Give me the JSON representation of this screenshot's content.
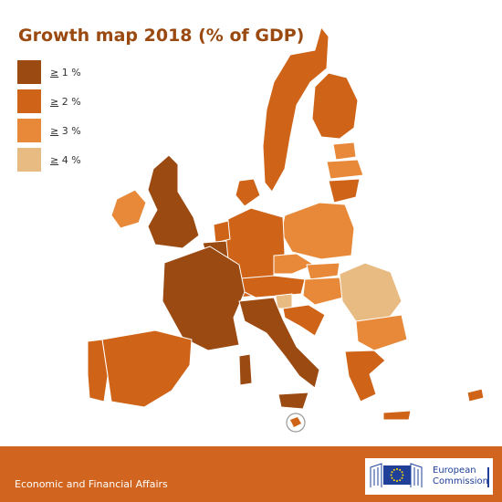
{
  "title": "Growth map 2018 (% of GDP)",
  "legend": [
    {
      "symbol": "≥",
      "value": "1 %",
      "color": "#9b4a12"
    },
    {
      "symbol": "≥",
      "value": "2 %",
      "color": "#cf6419"
    },
    {
      "symbol": "≥",
      "value": "3 %",
      "color": "#e8893a"
    },
    {
      "symbol": "≥",
      "value": "4 %",
      "color": "#e8bb83"
    }
  ],
  "footer": {
    "department": "Economic and Financial Affairs",
    "logo_line1": "European",
    "logo_line2": "Commission",
    "color": "#d1651f"
  },
  "map": {
    "region_icons": [
      "eu-member-states-map",
      "malta-inset-circle"
    ]
  }
}
